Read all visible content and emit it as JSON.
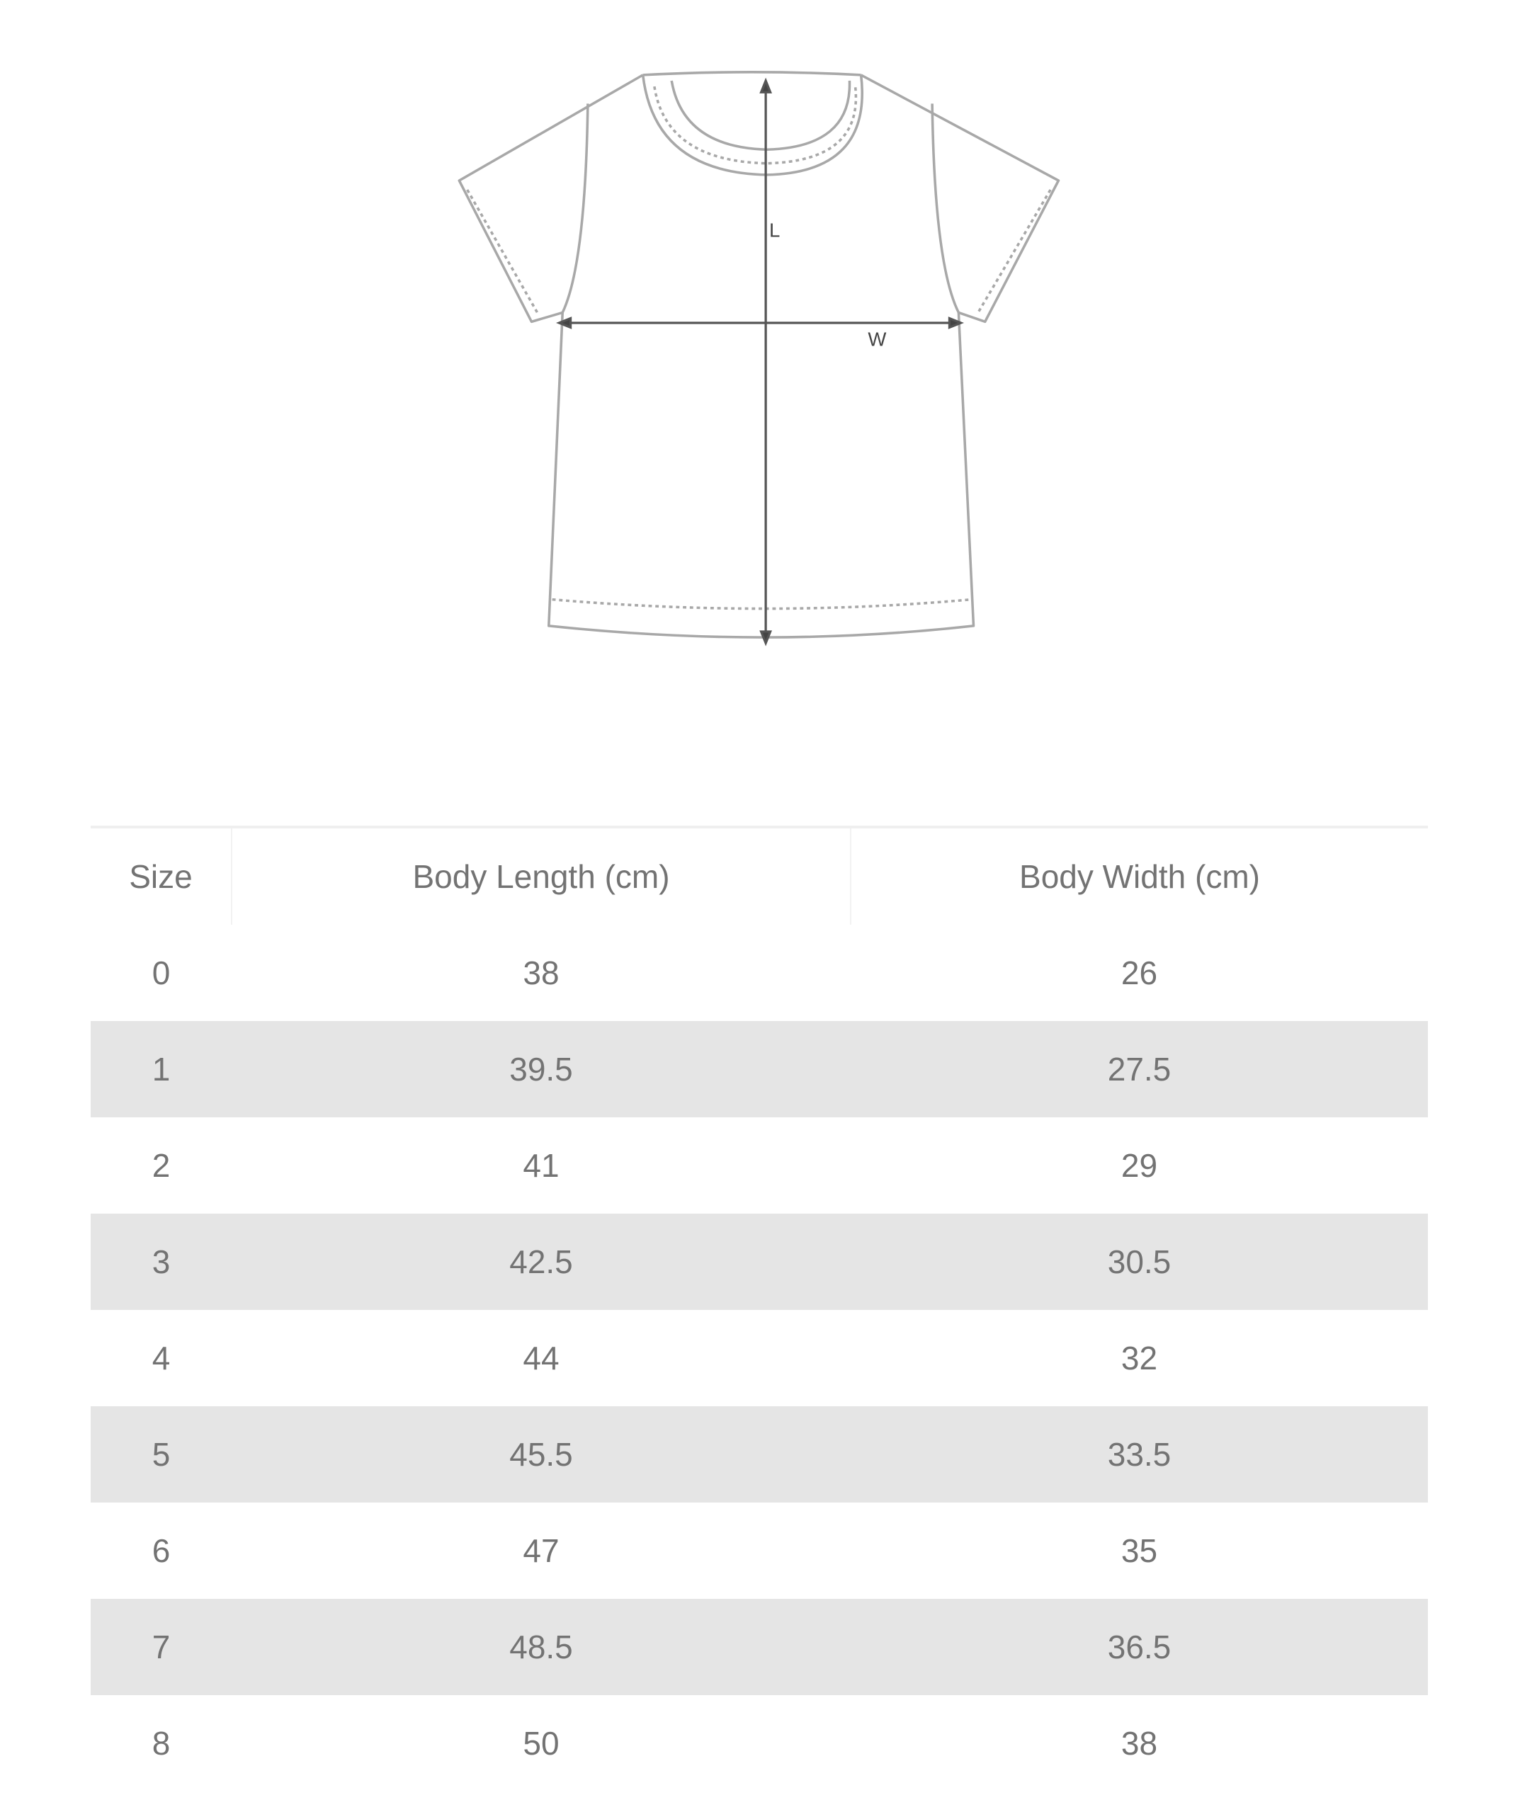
{
  "diagram": {
    "length_label": "L",
    "width_label": "W",
    "line_color": "#9a9a9a",
    "arrow_color": "#555555"
  },
  "table": {
    "headers": [
      "Size",
      "Body Length (cm)",
      "Body Width (cm)"
    ],
    "rows": [
      [
        "0",
        "38",
        "26"
      ],
      [
        "1",
        "39.5",
        "27.5"
      ],
      [
        "2",
        "41",
        "29"
      ],
      [
        "3",
        "42.5",
        "30.5"
      ],
      [
        "4",
        "44",
        "32"
      ],
      [
        "5",
        "45.5",
        "33.5"
      ],
      [
        "6",
        "47",
        "35"
      ],
      [
        "7",
        "48.5",
        "36.5"
      ],
      [
        "8",
        "50",
        "38"
      ]
    ],
    "stripe_color": "#e5e5e5"
  }
}
